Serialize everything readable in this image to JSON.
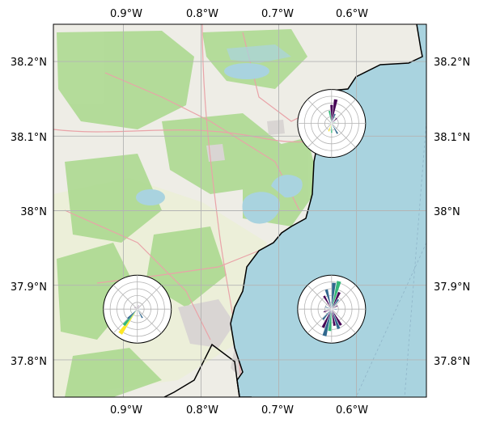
{
  "map": {
    "lon_range": [
      -0.99,
      -0.51
    ],
    "lat_range": [
      37.75,
      38.25
    ],
    "colors": {
      "sea": "#a9d3df",
      "land": "#eeede6",
      "vegetation": "#a9d88c",
      "farmland": "#ecefd9",
      "urban": "#d9d5d3",
      "lake": "#a9d3df",
      "grid": "#b4b4b4",
      "coastline": "#000000",
      "road": "#e9a3a8"
    },
    "x_ticks": [
      {
        "value": -0.9,
        "label": "0.9°W"
      },
      {
        "value": -0.8,
        "label": "0.8°W"
      },
      {
        "value": -0.7,
        "label": "0.7°W"
      },
      {
        "value": -0.6,
        "label": "0.6°W"
      }
    ],
    "y_ticks": [
      {
        "value": 38.2,
        "label": "38.2°N"
      },
      {
        "value": 38.1,
        "label": "38.1°N"
      },
      {
        "value": 38.0,
        "label": "38°N"
      },
      {
        "value": 37.9,
        "label": "37.9°N"
      },
      {
        "value": 37.8,
        "label": "37.8°N"
      }
    ],
    "grid": true
  },
  "wind_roses": [
    {
      "name": "wind-rose-north",
      "center": {
        "lon": -0.632,
        "lat": 38.117
      },
      "palette": [
        "#440154",
        "#31688e",
        "#35b779",
        "#fde725"
      ],
      "petals": [
        {
          "dir": 0,
          "len": 0.55,
          "color": "#440154"
        },
        {
          "dir": 10,
          "len": 0.72,
          "color": "#440154"
        },
        {
          "dir": 20,
          "len": 0.3,
          "color": "#31688e"
        },
        {
          "dir": 45,
          "len": 0.22,
          "color": "#440154"
        },
        {
          "dir": 70,
          "len": 0.12,
          "color": "#35b779"
        },
        {
          "dir": 150,
          "len": 0.35,
          "color": "#31688e"
        },
        {
          "dir": 180,
          "len": 0.28,
          "color": "#35b779"
        },
        {
          "dir": 200,
          "len": 0.25,
          "color": "#fde725"
        },
        {
          "dir": 260,
          "len": 0.1,
          "color": "#31688e"
        },
        {
          "dir": 350,
          "len": 0.38,
          "color": "#35b779"
        }
      ]
    },
    {
      "name": "wind-rose-southwest",
      "center": {
        "lon": -0.882,
        "lat": 37.868
      },
      "palette": [
        "#440154",
        "#31688e",
        "#35b779",
        "#fde725"
      ],
      "petals": [
        {
          "dir": 20,
          "len": 0.12,
          "color": "#440154"
        },
        {
          "dir": 90,
          "len": 0.1,
          "color": "#31688e"
        },
        {
          "dir": 150,
          "len": 0.3,
          "color": "#31688e"
        },
        {
          "dir": 215,
          "len": 0.88,
          "color": "#fde725"
        },
        {
          "dir": 220,
          "len": 0.62,
          "color": "#35b779"
        },
        {
          "dir": 225,
          "len": 0.4,
          "color": "#31688e"
        },
        {
          "dir": 300,
          "len": 0.1,
          "color": "#440154"
        }
      ]
    },
    {
      "name": "wind-rose-southeast",
      "center": {
        "lon": -0.632,
        "lat": 37.868
      },
      "palette": [
        "#440154",
        "#31688e",
        "#35b779",
        "#fde725"
      ],
      "petals": [
        {
          "dir": 5,
          "len": 0.78,
          "color": "#31688e"
        },
        {
          "dir": 15,
          "len": 0.85,
          "color": "#35b779"
        },
        {
          "dir": 25,
          "len": 0.55,
          "color": "#440154"
        },
        {
          "dir": 35,
          "len": 0.35,
          "color": "#31688e"
        },
        {
          "dir": 60,
          "len": 0.2,
          "color": "#440154"
        },
        {
          "dir": 90,
          "len": 0.15,
          "color": "#31688e"
        },
        {
          "dir": 150,
          "len": 0.55,
          "color": "#440154"
        },
        {
          "dir": 160,
          "len": 0.62,
          "color": "#31688e"
        },
        {
          "dir": 170,
          "len": 0.5,
          "color": "#440154"
        },
        {
          "dir": 185,
          "len": 0.65,
          "color": "#35b779"
        },
        {
          "dir": 195,
          "len": 0.82,
          "color": "#31688e"
        },
        {
          "dir": 205,
          "len": 0.6,
          "color": "#440154"
        },
        {
          "dir": 220,
          "len": 0.4,
          "color": "#31688e"
        },
        {
          "dir": 250,
          "len": 0.25,
          "color": "#440154"
        },
        {
          "dir": 290,
          "len": 0.2,
          "color": "#31688e"
        },
        {
          "dir": 330,
          "len": 0.45,
          "color": "#440154"
        },
        {
          "dir": 345,
          "len": 0.6,
          "color": "#31688e"
        }
      ]
    }
  ]
}
